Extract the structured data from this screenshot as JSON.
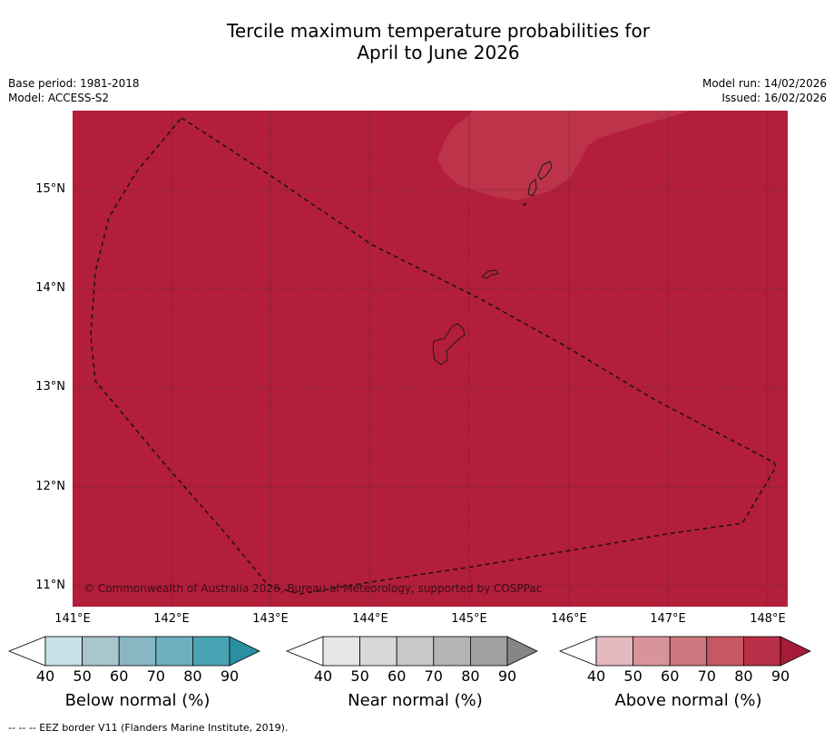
{
  "title": {
    "line1": "Tercile maximum temperature probabilities for",
    "line2": "April to June 2026"
  },
  "meta": {
    "base_period": "Base period: 1981-2018",
    "model": "Model: ACCESS-S2",
    "model_run": "Model run: 14/02/2026",
    "issued": "Issued: 16/02/2026"
  },
  "map": {
    "copyright": "© Commonwealth of Australia 2026, Bureau of Meteorology, supported by COSPPac",
    "lat_labels": [
      "15°N",
      "14°N",
      "13°N",
      "12°N",
      "11°N"
    ],
    "lon_labels": [
      "141°E",
      "142°E",
      "143°E",
      "144°E",
      "145°E",
      "146°E",
      "147°E",
      "148°E"
    ],
    "colors": {
      "above_90": "#b31e3a",
      "above_80_patch": "#bd3349",
      "coast": "#1a1a1a",
      "grid": "#333333"
    }
  },
  "colorbars": [
    {
      "label": "Below normal (%)",
      "ticks": [
        "40",
        "50",
        "60",
        "70",
        "80",
        "90"
      ],
      "colors": [
        "#ffffff",
        "#c8e0e6",
        "#a8c6cc",
        "#89b6c3",
        "#6eaebd",
        "#4aa3b4",
        "#2b8fa3"
      ]
    },
    {
      "label": "Near normal (%)",
      "ticks": [
        "40",
        "50",
        "60",
        "70",
        "80",
        "90"
      ],
      "colors": [
        "#ffffff",
        "#e6e6e6",
        "#d8d8d8",
        "#c8c8c8",
        "#b4b4b4",
        "#a0a0a0",
        "#868686"
      ]
    },
    {
      "label": "Above normal (%)",
      "ticks": [
        "40",
        "50",
        "60",
        "70",
        "80",
        "90"
      ],
      "colors": [
        "#ffffff",
        "#e4b8bf",
        "#d89599",
        "#ce767d",
        "#c55862",
        "#b82f48",
        "#a61b38"
      ]
    }
  ],
  "footnote": "--  --  -- EEZ border V11 (Flanders Marine Institute, 2019)."
}
